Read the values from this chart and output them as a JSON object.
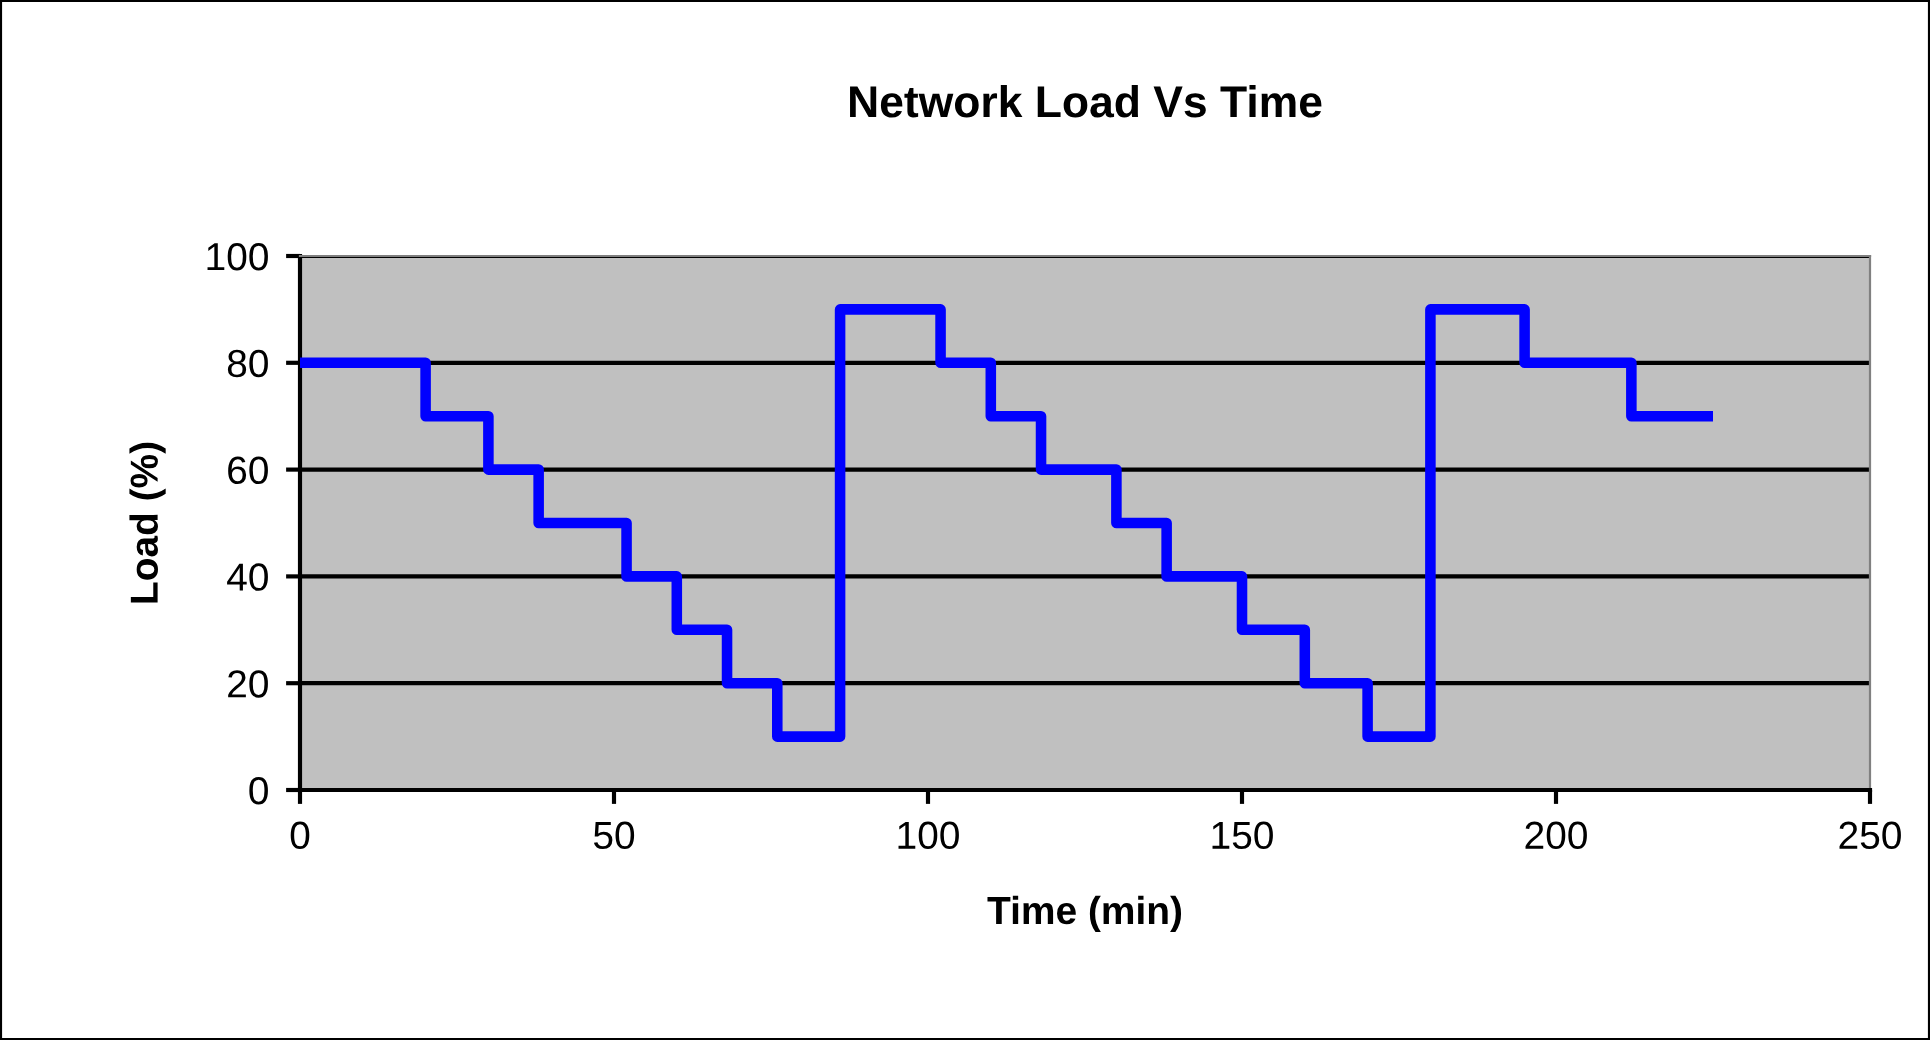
{
  "chart_data": {
    "type": "step",
    "title": "Network Load Vs Time",
    "xlabel": "Time (min)",
    "ylabel": "Load (%)",
    "x": [
      0,
      20,
      30,
      38,
      52,
      60,
      68,
      76,
      86,
      102,
      110,
      118,
      130,
      138,
      150,
      160,
      170,
      180,
      195,
      212,
      225
    ],
    "series": [
      {
        "color": "#0000ff",
        "values": [
          80,
          70,
          60,
          50,
          40,
          30,
          20,
          10,
          90,
          80,
          70,
          60,
          50,
          40,
          30,
          20,
          10,
          90,
          80,
          70,
          70
        ]
      }
    ],
    "xlim": [
      0,
      250
    ],
    "xticks": [
      0,
      50,
      100,
      150,
      200,
      250
    ],
    "ylim": [
      0,
      100
    ],
    "yticks": [
      0,
      20,
      40,
      60,
      80,
      100
    ],
    "grid": "y",
    "marker": "none",
    "line_style": "solid"
  }
}
